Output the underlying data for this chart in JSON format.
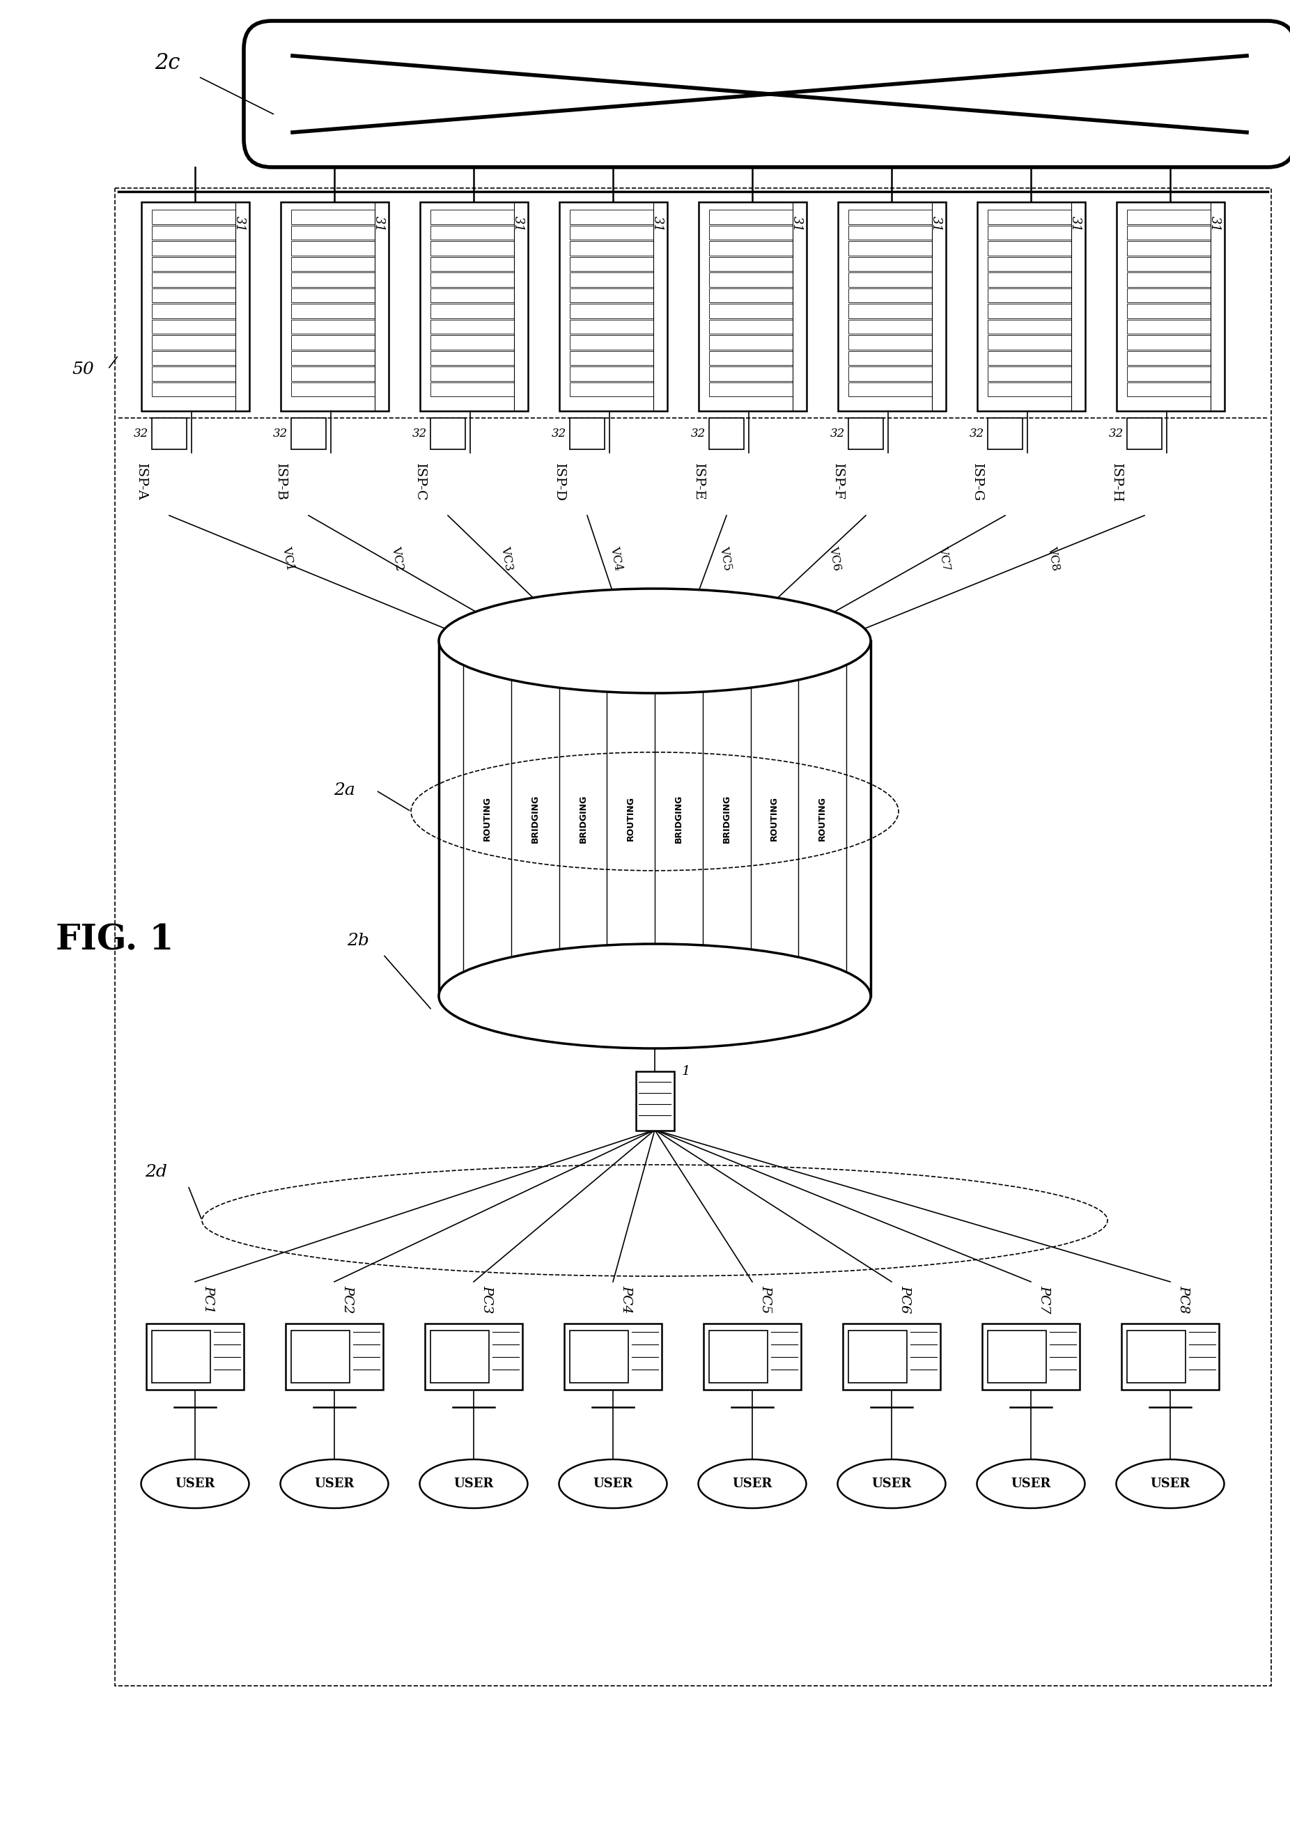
{
  "fig_label": "FIG. 1",
  "background_color": "#ffffff",
  "isp_labels": [
    "ISP-A",
    "ISP-B",
    "ISP-C",
    "ISP-D",
    "ISP-E",
    "ISP-F",
    "ISP-G",
    "ISP-H"
  ],
  "vc_labels": [
    "VC1",
    "VC2",
    "VC3",
    "VC4",
    "VC5",
    "VC6",
    "VC7",
    "VC8"
  ],
  "pc_labels": [
    "PC1",
    "PC2",
    "PC3",
    "PC4",
    "PC5",
    "PC6",
    "PC7",
    "PC8"
  ],
  "user_labels": [
    "USER",
    "USER",
    "USER",
    "USER",
    "USER",
    "USER",
    "USER",
    "USER"
  ],
  "cylinder_texts": [
    "ROUTING",
    "BRIDGING",
    "BRIDGING",
    "ROUTING",
    "BRIDGING",
    "BRIDGING",
    "ROUTING",
    "ROUTING"
  ],
  "label_2a": "2a",
  "label_2b": "2b",
  "label_2c": "2c",
  "label_2d": "2d",
  "label_50": "50",
  "label_31": "31",
  "label_32": "32",
  "label_1": "1"
}
